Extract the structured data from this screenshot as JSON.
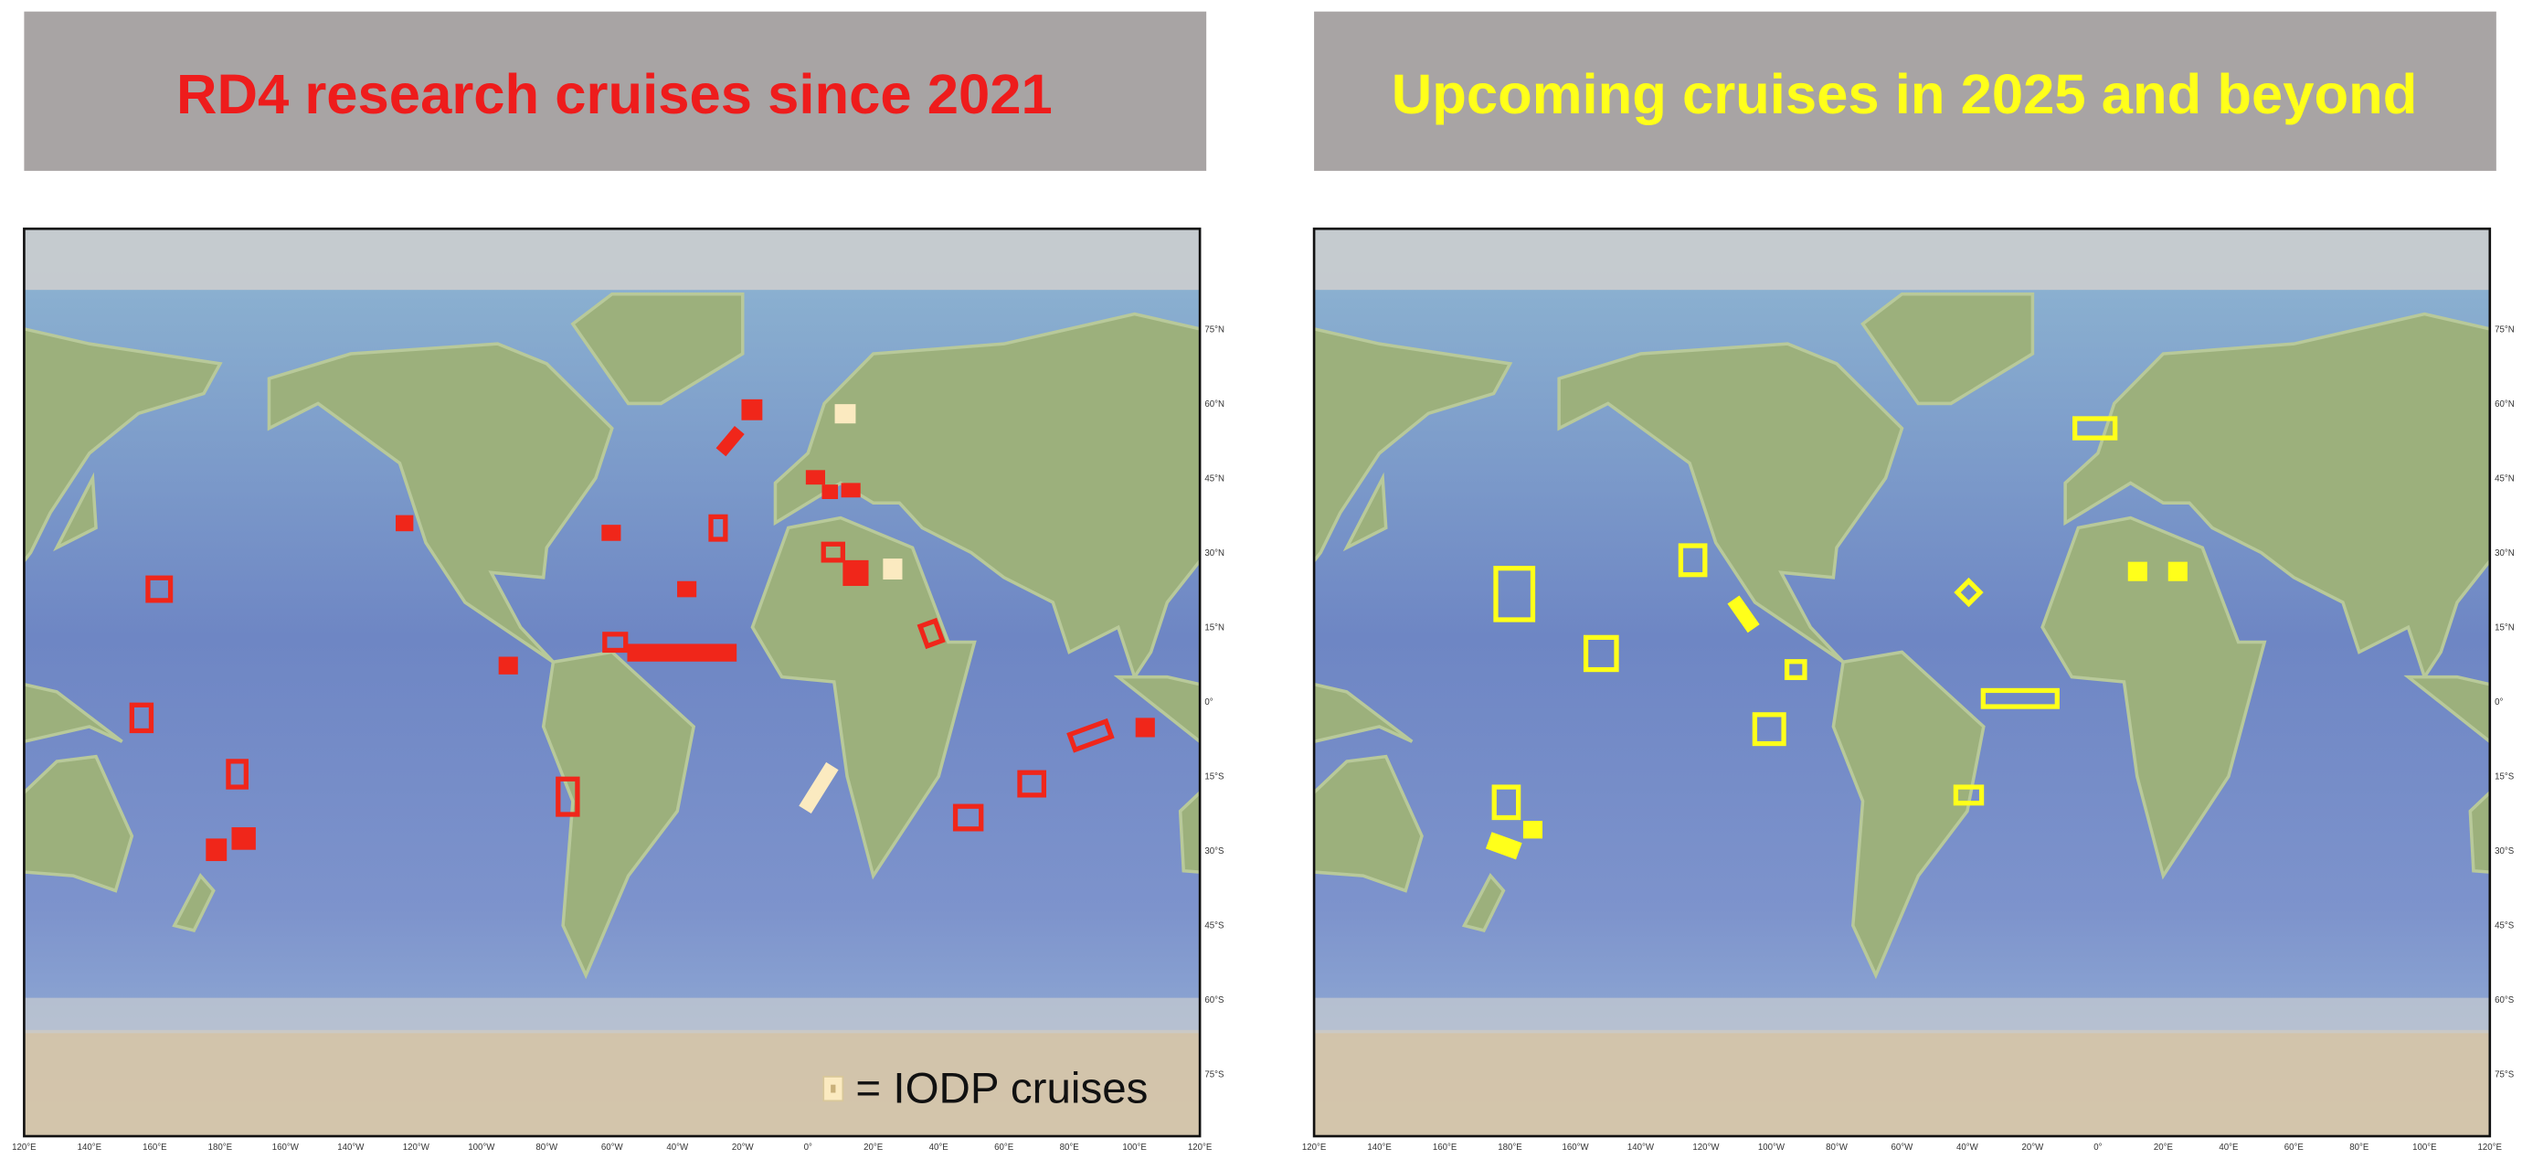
{
  "left_panel": {
    "title": "RD4 research cruises since 2021",
    "legend": "= IODP cruises"
  },
  "right_panel": {
    "title": "Upcoming cruises in 2025 and beyond"
  },
  "map": {
    "lat_labels": [
      "75°N",
      "60°N",
      "45°N",
      "30°N",
      "15°N",
      "0°",
      "15°S",
      "30°S",
      "45°S",
      "60°S",
      "75°S"
    ],
    "lon_labels": [
      "120°E",
      "140°E",
      "160°E",
      "180°E",
      "160°W",
      "140°W",
      "120°W",
      "100°W",
      "80°W",
      "60°W",
      "40°W",
      "20°W",
      "0°",
      "20°E",
      "40°E",
      "60°E",
      "80°E",
      "100°E",
      "120°E"
    ]
  }
}
